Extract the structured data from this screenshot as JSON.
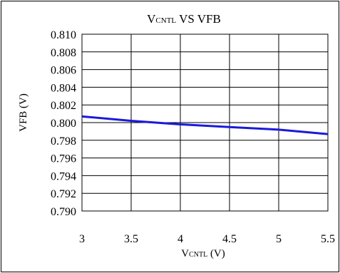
{
  "chart_data": {
    "type": "line",
    "title": {
      "main": "V",
      "sub": "CNTL",
      "rest": " VS VFB"
    },
    "xlabel": {
      "main": "V",
      "sub": "CNTL",
      "rest": " (V)"
    },
    "ylabel": "VFB (V)",
    "xlim": [
      3,
      5.5
    ],
    "ylim": [
      0.79,
      0.81
    ],
    "x_ticks": [
      3,
      3.5,
      4,
      4.5,
      5,
      5.5
    ],
    "x_tick_labels": [
      "3",
      "3.5",
      "4",
      "4.5",
      "5",
      "5.5"
    ],
    "y_ticks": [
      0.81,
      0.808,
      0.806,
      0.804,
      0.802,
      0.8,
      0.798,
      0.796,
      0.794,
      0.792,
      0.79
    ],
    "y_tick_labels": [
      "0.810",
      "0.808",
      "0.806",
      "0.804",
      "0.802",
      "0.800",
      "0.798",
      "0.796",
      "0.794",
      "0.792",
      "0.790"
    ],
    "grid": true,
    "series": [
      {
        "color": "#1a1adb",
        "x": [
          3,
          3.5,
          4,
          4.5,
          5,
          5.5
        ],
        "y": [
          0.8007,
          0.8002,
          0.7998,
          0.7995,
          0.7992,
          0.7987
        ]
      }
    ]
  }
}
